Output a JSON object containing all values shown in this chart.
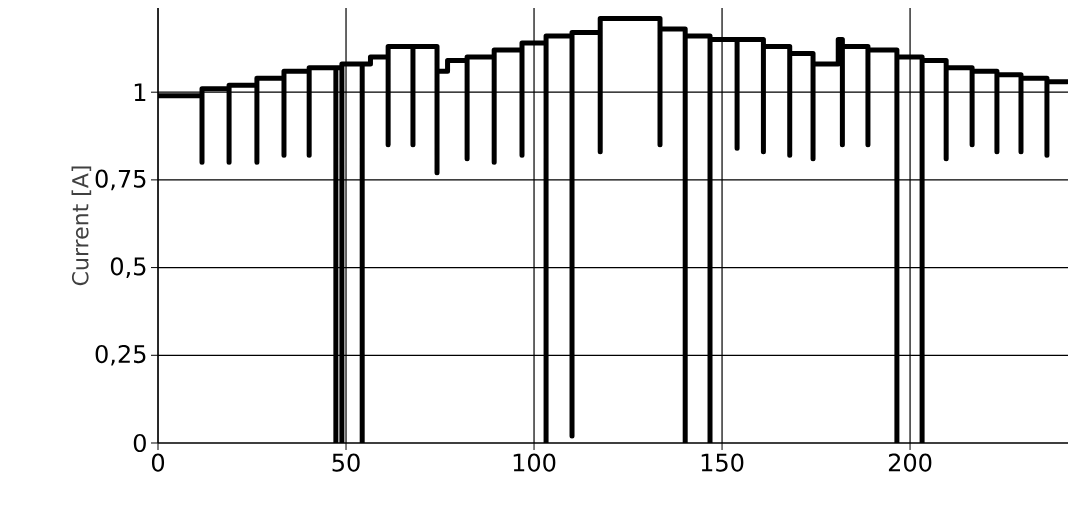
{
  "chart_data": {
    "type": "line",
    "ylabel": "Current [A]",
    "x": [
      0,
      11.7,
      11.7,
      11.7,
      18.9,
      18.9,
      18.9,
      26.3,
      26.3,
      26.3,
      33.5,
      33.5,
      33.5,
      40.2,
      40.2,
      40.2,
      47.3,
      47.3,
      47.3,
      48.9,
      48.9,
      48.9,
      54.3,
      54.3,
      54.3,
      56.5,
      56.5,
      61.2,
      61.2,
      61.2,
      67.8,
      67.8,
      67.8,
      74.2,
      74.2,
      74.2,
      77,
      77,
      82.2,
      82.2,
      82.2,
      89.4,
      89.4,
      89.4,
      96.8,
      96.8,
      96.8,
      103.2,
      103.2,
      103.2,
      110.1,
      110.1,
      110.1,
      117.6,
      117.6,
      117.6,
      133.5,
      133.5,
      133.5,
      140.2,
      140.2,
      140.2,
      146.8,
      146.8,
      146.8,
      154,
      154,
      154,
      161,
      161,
      161,
      168,
      168,
      168,
      174.2,
      174.2,
      174.2,
      180.9,
      180.9,
      182,
      182,
      182,
      188.8,
      188.8,
      188.8,
      196.5,
      196.5,
      196.5,
      203.2,
      203.2,
      203.2,
      209.6,
      209.6,
      209.6,
      216.5,
      216.5,
      216.5,
      223.1,
      223.1,
      223.1,
      229.5,
      229.5,
      229.5,
      236.4,
      236.4,
      236.4,
      241.7
    ],
    "series": [
      {
        "color": "#000000",
        "values": [
          0.99,
          0.99,
          0.8,
          1.01,
          1.01,
          0.8,
          1.02,
          1.02,
          0.8,
          1.04,
          1.04,
          0.82,
          1.06,
          1.06,
          0.82,
          1.07,
          1.07,
          0,
          1.07,
          1.07,
          0,
          1.08,
          1.08,
          0,
          1.08,
          1.08,
          1.1,
          1.1,
          0.85,
          1.13,
          1.13,
          0.85,
          1.13,
          1.13,
          0.77,
          1.06,
          1.06,
          1.09,
          1.09,
          0.81,
          1.1,
          1.1,
          0.8,
          1.12,
          1.12,
          0.82,
          1.14,
          1.14,
          0,
          1.16,
          1.16,
          0.02,
          1.17,
          1.17,
          0.83,
          1.21,
          1.21,
          0.85,
          1.18,
          1.18,
          0,
          1.16,
          1.16,
          0,
          1.15,
          1.15,
          0.84,
          1.15,
          1.15,
          0.83,
          1.13,
          1.13,
          0.82,
          1.11,
          1.11,
          0.81,
          1.08,
          1.08,
          1.15,
          1.15,
          0.85,
          1.13,
          1.13,
          0.85,
          1.12,
          1.12,
          0,
          1.1,
          1.1,
          0,
          1.09,
          1.09,
          0.81,
          1.07,
          1.07,
          0.85,
          1.06,
          1.06,
          0.83,
          1.05,
          1.05,
          0.83,
          1.04,
          1.04,
          0.82,
          1.03,
          1.03
        ]
      }
    ],
    "xlim": [
      0,
      242
    ],
    "ylim": [
      0,
      1.24
    ],
    "xticks": [
      0,
      50,
      100,
      150,
      200
    ],
    "yticks": [
      0,
      {
        "value": 0.25,
        "label": "0,25"
      },
      {
        "value": 0.5,
        "label": "0,5"
      },
      {
        "value": 0.75,
        "label": "0,75"
      },
      1
    ],
    "grid": true,
    "line_style": "solid",
    "marker": "none"
  }
}
